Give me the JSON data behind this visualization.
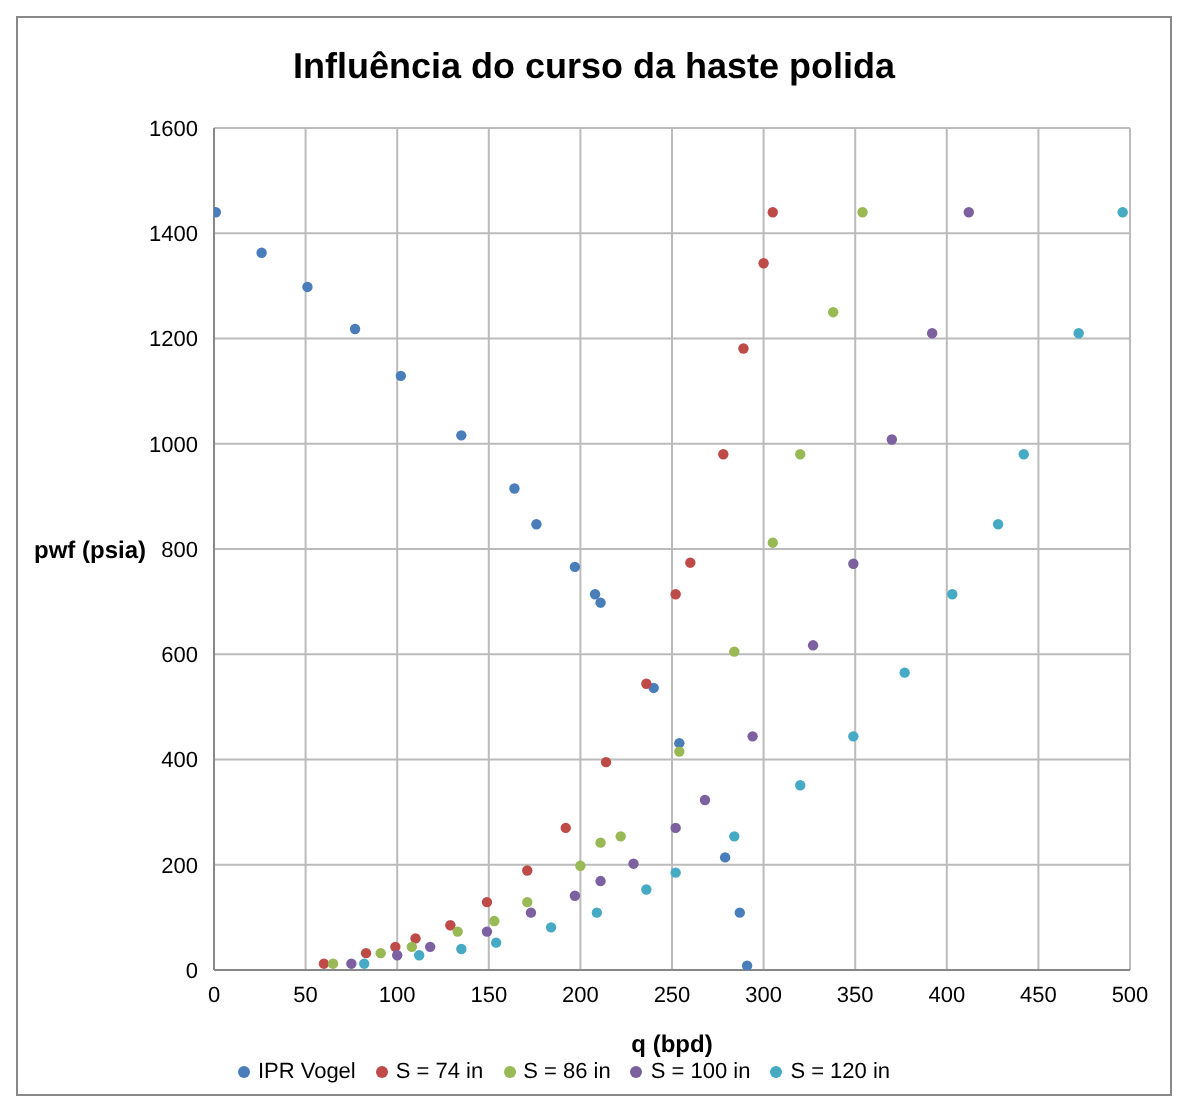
{
  "chart_data": {
    "type": "scatter",
    "title": "Influência do curso da haste polida",
    "xlabel": "q (bpd)",
    "ylabel": "pwf (psia)",
    "xlim": [
      0,
      500
    ],
    "xticks": [
      0,
      50,
      100,
      150,
      200,
      250,
      300,
      350,
      400,
      450,
      500
    ],
    "ylim": [
      0,
      1600
    ],
    "yticks": [
      0,
      200,
      400,
      600,
      800,
      1000,
      1200,
      1400,
      1600
    ],
    "grid": true,
    "legend": "bottom",
    "marker": "circle",
    "series": [
      {
        "name": "IPR Vogel",
        "color": "#4a7ebb",
        "x": [
          1,
          26,
          51,
          77,
          102,
          135,
          164,
          176,
          197,
          208,
          211,
          240,
          254,
          279,
          287,
          291
        ],
        "values": [
          1440,
          1363,
          1298,
          1218,
          1129,
          1016,
          915,
          847,
          766,
          714,
          698,
          536,
          431,
          214,
          109,
          8
        ]
      },
      {
        "name": "S = 74 in",
        "color": "#be4b48",
        "x": [
          60,
          83,
          99,
          110,
          129,
          149,
          171,
          192,
          214,
          236,
          252,
          260,
          278,
          289,
          300,
          305
        ],
        "values": [
          12,
          32,
          44,
          60,
          85,
          129,
          189,
          270,
          395,
          544,
          714,
          774,
          980,
          1181,
          1343,
          1440
        ]
      },
      {
        "name": "S = 86 in",
        "color": "#98b954",
        "x": [
          65,
          91,
          108,
          133,
          153,
          171,
          200,
          211,
          222,
          254,
          284,
          305,
          320,
          338,
          354
        ],
        "values": [
          12,
          32,
          44,
          73,
          93,
          129,
          198,
          242,
          254,
          415,
          605,
          812,
          980,
          1250,
          1440
        ]
      },
      {
        "name": "S = 100 in",
        "color": "#7d60a0",
        "x": [
          75,
          100,
          118,
          149,
          173,
          197,
          211,
          229,
          252,
          268,
          294,
          327,
          349,
          370,
          392,
          412
        ],
        "values": [
          12,
          28,
          44,
          73,
          109,
          141,
          169,
          202,
          270,
          323,
          444,
          617,
          772,
          1008,
          1210,
          1440
        ]
      },
      {
        "name": "S = 120 in",
        "color": "#46aac5",
        "x": [
          82,
          112,
          135,
          154,
          184,
          209,
          236,
          252,
          284,
          320,
          349,
          377,
          403,
          428,
          442,
          472,
          496
        ],
        "values": [
          12,
          28,
          40,
          52,
          81,
          109,
          153,
          185,
          254,
          351,
          444,
          565,
          714,
          847,
          980,
          1210,
          1440
        ]
      }
    ]
  }
}
